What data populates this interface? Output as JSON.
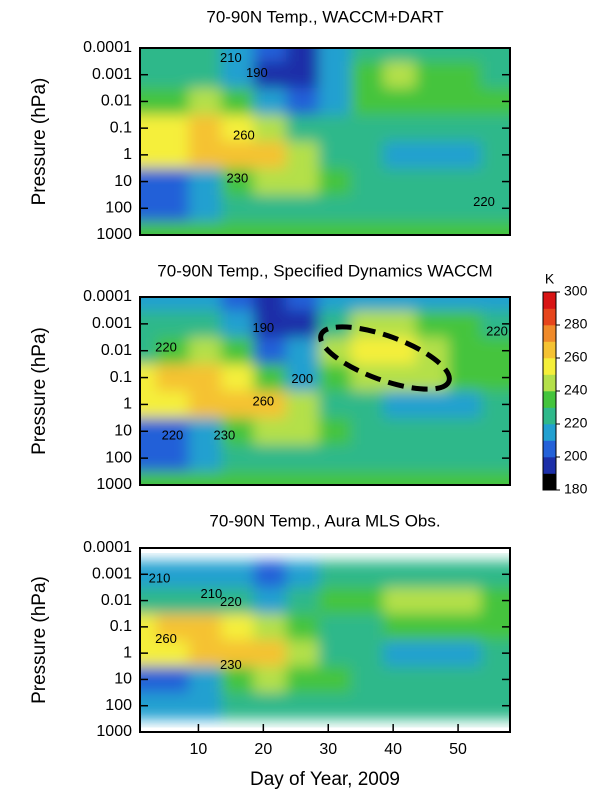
{
  "chart_data": [
    {
      "type": "contour",
      "title": "70-90N Temp., WACCM+DART",
      "ylabel": "Pressure (hPa)",
      "log_y": true,
      "xlim": [
        1,
        58
      ],
      "ylim": [
        1000,
        0.0001
      ],
      "yticks": [
        0.0001,
        0.001,
        0.01,
        0.1,
        1,
        10,
        100,
        1000
      ],
      "x": [
        1,
        6,
        11,
        16,
        21,
        26,
        31,
        36,
        41,
        46,
        51,
        56
      ],
      "levels": [
        0.0001,
        0.001,
        0.01,
        0.1,
        1,
        10,
        100,
        1000
      ],
      "values": [
        [
          225,
          225,
          220,
          215,
          200,
          195,
          215,
          220,
          220,
          220,
          220,
          220
        ],
        [
          225,
          225,
          220,
          210,
          195,
          190,
          215,
          235,
          240,
          235,
          230,
          225
        ],
        [
          230,
          235,
          245,
          235,
          215,
          205,
          215,
          230,
          235,
          235,
          230,
          230
        ],
        [
          255,
          258,
          262,
          255,
          240,
          228,
          222,
          222,
          225,
          225,
          225,
          225
        ],
        [
          250,
          255,
          262,
          262,
          268,
          242,
          228,
          220,
          215,
          215,
          215,
          220
        ],
        [
          205,
          205,
          215,
          238,
          248,
          242,
          232,
          225,
          225,
          225,
          225,
          225
        ],
        [
          205,
          205,
          210,
          220,
          228,
          226,
          222,
          220,
          220,
          220,
          220,
          220
        ],
        [
          232,
          232,
          232,
          232,
          232,
          232,
          232,
          232,
          232,
          232,
          232,
          232
        ]
      ],
      "contour_labels": [
        {
          "x": 15,
          "y": 0.00025,
          "value": 210
        },
        {
          "x": 19,
          "y": 0.0009,
          "value": 190
        },
        {
          "x": 17,
          "y": 0.2,
          "value": 260
        },
        {
          "x": 16,
          "y": 8,
          "value": 230
        },
        {
          "x": 54,
          "y": 60,
          "value": 220
        }
      ]
    },
    {
      "type": "contour",
      "title": "70-90N Temp., Specified Dynamics WACCM",
      "ylabel": "Pressure (hPa)",
      "log_y": true,
      "xlim": [
        1,
        58
      ],
      "ylim": [
        1000,
        0.0001
      ],
      "yticks": [
        0.0001,
        0.001,
        0.01,
        0.1,
        1,
        10,
        100,
        1000
      ],
      "x": [
        1,
        6,
        11,
        16,
        21,
        26,
        31,
        36,
        41,
        46,
        51,
        56
      ],
      "levels": [
        0.0001,
        0.001,
        0.01,
        0.1,
        1,
        10,
        100,
        1000
      ],
      "values": [
        [
          215,
          215,
          212,
          205,
          198,
          200,
          215,
          215,
          215,
          215,
          215,
          215
        ],
        [
          220,
          222,
          220,
          212,
          198,
          195,
          228,
          240,
          240,
          235,
          230,
          225
        ],
        [
          225,
          232,
          240,
          235,
          200,
          210,
          245,
          250,
          250,
          245,
          235,
          230
        ],
        [
          258,
          260,
          262,
          255,
          230,
          210,
          235,
          240,
          240,
          240,
          235,
          232
        ],
        [
          250,
          255,
          262,
          262,
          268,
          242,
          228,
          220,
          215,
          215,
          215,
          220
        ],
        [
          205,
          205,
          218,
          238,
          248,
          242,
          232,
          225,
          225,
          225,
          225,
          225
        ],
        [
          208,
          208,
          212,
          220,
          228,
          226,
          222,
          220,
          220,
          220,
          220,
          220
        ],
        [
          232,
          232,
          232,
          232,
          232,
          232,
          232,
          232,
          232,
          232,
          232,
          232
        ]
      ],
      "contour_labels": [
        {
          "x": 20,
          "y": 0.0015,
          "value": 190
        },
        {
          "x": 5,
          "y": 0.008,
          "value": 220
        },
        {
          "x": 26,
          "y": 0.12,
          "value": 200
        },
        {
          "x": 20,
          "y": 0.8,
          "value": 260
        },
        {
          "x": 6,
          "y": 15,
          "value": 220
        },
        {
          "x": 14,
          "y": 15,
          "value": 230
        },
        {
          "x": 56,
          "y": 0.002,
          "value": 220
        }
      ]
    },
    {
      "type": "contour",
      "title": "70-90N Temp., Aura MLS Obs.",
      "ylabel": "Pressure (hPa)",
      "xlabel": "Day of Year, 2009",
      "log_y": true,
      "xlim": [
        1,
        58
      ],
      "ylim": [
        1000,
        0.0001
      ],
      "yticks": [
        0.0001,
        0.001,
        0.01,
        0.1,
        1,
        10,
        100,
        1000
      ],
      "xticks": [
        10,
        20,
        30,
        40,
        50
      ],
      "x": [
        1,
        6,
        11,
        16,
        21,
        26,
        31,
        36,
        41,
        46,
        51,
        56
      ],
      "levels": [
        0.0001,
        0.001,
        0.01,
        0.1,
        1,
        10,
        100,
        1000
      ],
      "values": [
        [
          null,
          null,
          null,
          null,
          null,
          null,
          null,
          null,
          null,
          null,
          null,
          null
        ],
        [
          215,
          218,
          218,
          215,
          200,
          212,
          222,
          222,
          222,
          222,
          222,
          222
        ],
        [
          225,
          228,
          228,
          222,
          218,
          225,
          232,
          238,
          242,
          245,
          240,
          235
        ],
        [
          255,
          260,
          262,
          255,
          245,
          232,
          228,
          228,
          230,
          230,
          230,
          230
        ],
        [
          250,
          258,
          262,
          265,
          268,
          245,
          228,
          222,
          218,
          218,
          218,
          220
        ],
        [
          205,
          205,
          218,
          235,
          245,
          238,
          230,
          225,
          225,
          225,
          225,
          225
        ],
        [
          212,
          212,
          215,
          220,
          225,
          224,
          222,
          220,
          220,
          220,
          220,
          220
        ],
        [
          null,
          null,
          null,
          null,
          null,
          null,
          null,
          null,
          null,
          null,
          null,
          null
        ]
      ],
      "contour_labels": [
        {
          "x": 4,
          "y": 0.0015,
          "value": 210
        },
        {
          "x": 12,
          "y": 0.006,
          "value": 210
        },
        {
          "x": 15,
          "y": 0.012,
          "value": 220
        },
        {
          "x": 5,
          "y": 0.3,
          "value": 260
        },
        {
          "x": 15,
          "y": 3,
          "value": 230
        }
      ]
    },
    {
      "type": "colorbar",
      "title": "K",
      "ylim": [
        180,
        300
      ],
      "yticks": [
        180,
        200,
        220,
        240,
        260,
        280,
        300
      ],
      "step": 10,
      "colors": [
        "#000000",
        "#1c2fa8",
        "#2461d8",
        "#22a0d0",
        "#2fb88a",
        "#44c43c",
        "#b4e04a",
        "#f5ef3a",
        "#f5c232",
        "#ef8a2a",
        "#e6451c",
        "#d81414"
      ]
    }
  ]
}
